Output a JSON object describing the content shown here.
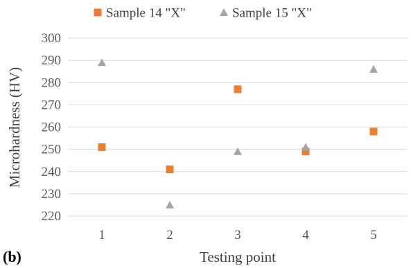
{
  "panel_label": "(b)",
  "chart_data": {
    "type": "scatter",
    "title": "",
    "xlabel": "Testing point",
    "ylabel": "Microhardness (HV)",
    "x": [
      1,
      2,
      3,
      4,
      5
    ],
    "xticks": [
      "1",
      "2",
      "3",
      "4",
      "5"
    ],
    "ylim": [
      220,
      300
    ],
    "yticks": [
      220,
      230,
      240,
      250,
      260,
      270,
      280,
      290,
      300
    ],
    "grid": "horizontal",
    "legend_position": "top",
    "series": [
      {
        "name": "Sample 14 \"X\"",
        "marker": "square",
        "color": "#ED7D31",
        "values": [
          251,
          241,
          277,
          249,
          258
        ]
      },
      {
        "name": "Sample 15 \"X\"",
        "marker": "triangle",
        "color": "#A5A5A5",
        "values": [
          289,
          225,
          249,
          251,
          286
        ]
      }
    ]
  }
}
